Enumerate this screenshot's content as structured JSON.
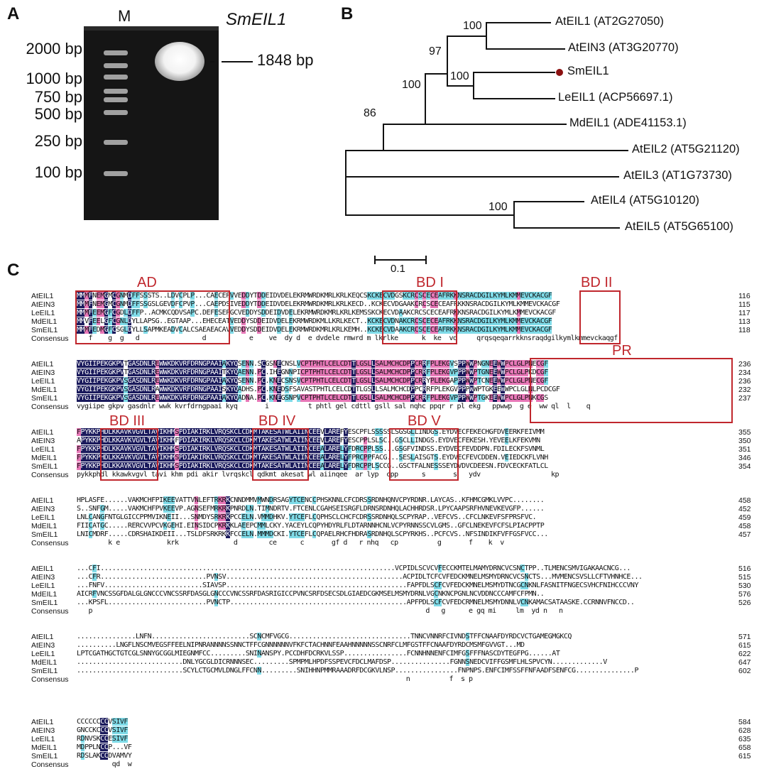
{
  "panels": {
    "a": "A",
    "b": "B",
    "c": "C"
  },
  "gel": {
    "lane_marker": "M",
    "gene": "SmEIL1",
    "band_size": "1848 bp",
    "ladder": [
      "2000 bp",
      "1000 bp",
      "750 bp",
      "500 bp",
      "250 bp",
      "100 bp"
    ]
  },
  "tree": {
    "leaves": [
      "AtEIL1 (AT2G27050)",
      "AtEIN3 (AT3G20770)",
      "SmEIL1",
      "LeEIL1 (ACP56697.1)",
      "MdEIL1 (ADE41153.1)",
      "AtEIL2 (AT5G21120)",
      "AtEIL3 (AT1G73730)",
      "AtEIL4 (AT5G10120)",
      "AtEIL5 (AT5G65100)"
    ],
    "bootstrap": [
      "100",
      "97",
      "100",
      "100",
      "86",
      "100"
    ],
    "scale": "0.1"
  },
  "alignment": {
    "names": [
      "AtEIL1",
      "AtEIN3",
      "LeEIL1",
      "MdEIL1",
      "SmEIL1",
      "Consensus"
    ],
    "domains": [
      "AD",
      "BD I",
      "BD II",
      "PR",
      "BD III",
      "BD IV",
      "BD V"
    ],
    "blocks": [
      {
        "rows": [
          "MMMFNEMGMCGNMDFFSSSTS..LDVCPLP...CAECEPVVEDDYTDDEIDVDELEKRMWRDKMRLKRLKEQCSKCKECVDGSKCRCSCECEAFRKKNSRACDGILKYMLKMMEVCKACGF",
          "MMMFNEMGMCGNMDFFSSGSLGEVDFCPVP...CAEPDSIVEDDYTDDEIDVDELEKRMWRDKMRLKRLKECD..KCKECVDGAAKCRCSCECEAFRKKNSRACDGILKYMLKMMEVCKACGF",
          "MMMFEEMGFCGDLDFFP..ACMKCQDVSAPC.DEFESEPGCVEDDYSDDEIDVDELEKRMWRDKMRLKRLKEMSSKCKECVDAAKCRCSCECEAFRKKNSRACDGILKYMLKMMEVCKACGF",
          "MMVFEELGFCGNLDYLLAPSG..EGTAAP...EHECEATVEDDYSDDEIDVDELEKRMWRDKMLLKRLKECT..KCKECVDNAKCRCSCECEAFRKKNSRACDGILKYMLKMMEVCKACGF",
          "MMMFEDMGFCSGLDYLLSAPMKEADVCALCSAEAEACAVVEDDYSDDEIDVDELEKRMWRDKMRLKRLKEMH..KCKECVDAAKCRCSCECEAFRKKNSRACDGILKYMLKMMEVCKACGF",
          "   f    g  g   d                d           e    ve  dy d  e dvdele rmwrd m lkrlke      k  ke  vd     qrqsqeqarrkknsraqdgilkymlkmmevckaqgf"
        ],
        "nums": [
          "116",
          "115",
          "117",
          "113",
          "118"
        ]
      },
      {
        "rows": [
          "VYGIIPEKGKPVTGASDNLREWWKDKVRFDRNGPAAIAKYQSENN.SCGSNECNSLVCPTPHTLCELCDTTLGSLLSALMCHCDPPCRRFPLEKGVSPPWWPNGNEEWWPCLGLPNECGF",
          "VYGIIPEKGKPVTGASDNLREWWKDKVRFDRNGPAAITKYQAENN.PC.IHEGNNPICPTPHTLCELCDTTLGSLLSALMCHCDPPCRRFPLEKGVPPPWWPTGNEEWWPCLGLPKDCGF",
          "VYGIIPEKGKPVSGASDNLREWWKDKVRFDRNGPAAIAKYQSENN.PC.KNECSNSVCPTPHTLCELCDTTLGSLLSALMCHCDPPCRRYPLEKGAPPPWWPTCNEEWWPCLGLPNECGF",
          "VYGIIPEKGKPVSGASDNLRAWWKDKVRFDRNGPAAISKYQADHS.PC.KNEDSFSAVASTPHTLCELCDTTLGSLLSALMCHCDPPCRRFPLEKGVPPPWWPTGKEEWWPCLGLNLPCDCGF",
          "VYGIIPEKGKPVSGASDNLREWWKDKVRFDRNGPAAIAKYQADNA.PC.KNEGSNPVCPTPHTLCELCDTTLGSLLSALMCHCDPPCRRFPLEKGVPPPWWPTGKEEWWPCLGLPNKCGS",
          "vygiipe gkpv gasdnlr wwk kvrfdrngpaai kyq       i          t phtl gel cdttl gsll sal nqhc ppqr r pl ekg   ppwwp  g e  ww ql  l    q"
        ],
        "nums": [
          "236",
          "234",
          "236",
          "232",
          "237"
        ]
      },
      {
        "rows": [
          "FPYKKPHDLKKAVKVGVLTAVIKHMSPDIAKIRKLVRQSKCLCDKMTAKESATWLAIINCEEVLAREFYESCPFLSSSSSLSGSGLLINDGS.EYDVECFEKECHGFDVEERKFEIVMM",
          "APYKKPHDLKKAVKVGVLTAVIKHMFPDIAKIRKLVRQSKCLCDKMTAKESATWLAIINCEEVLAREFYESCPPLSLSC..GSCLLINDGS.EYDVECFEKESH.YEVEELKFEKVMN",
          "FPYKKPHDLKKAVKVGVLTAVIKHMSPDIAKIRKLVRQSKCLCDKMTAKESATWLAIINCEEALARELYFDRCPPLSS...GSGFVINDSS.EYDVECFEVDDPN.FDILECKFSVNML",
          "FPYKKPHDLKKAVKVGVLTAVIKHMSPDIAKIRKLVRQSKCLCDKMTAKESATWLAIINCEEALARELYFPRCPPFACG...SESLAISGTS.EYDVECFEVCDDEN.VEIEDCKFLVNH",
          "FPYKKPHDLKKAVKVGVLTAVIKHMSPDIAKIRKLVRQSKCLCDKMTAKESATWLAIINCEEALARELYFDRCPPLSCCG..GSCTFALNESSSEYDVDVCDEESN.FDVCECKFATLCL",
          "pykkphdl kkawkvgvl tavi khm pdi akir lvrqskcl qdkmt akesat wl aiinqee  ar lyp  cpp      s       s   ydv                  kp"
        ],
        "nums": [
          "355",
          "350",
          "351",
          "346",
          "354"
        ]
      },
      {
        "rows": [
          "HPLASFE......VAKMCHFPIKEEVATTVNLEFTRKRKCNNDMMVMWNDRSAGYTCENCCPHSKNNLCFCDRSSRDNHQNVCPYRDNR.LAYCAS..KFHMCGMKLVVPC........",
          "S..SNFGM.....VAKMCHFPVKEEVP.AGNSEFMRKRKPNRDLN.TIMNDRTV.FTCENLCGAHSEISRGFLDRNSRDNHQLACHHRDSR.LPYCAAPSRFHVNEVKEVGFP......",
          "LNLCANGFNTGLGICCPPMVIKNEII...SNMDYSRKRKPCCELN.VMMDHKV.YTCEFLCQPHSCLCHCFCDRSSRDNHQLSCPYRAP..VEFCVS..CFCLNKEVFSFPRSFVC.",
          "FIICATGC.....RERCVVPCVKGEHI.EINSIDCPKRKKLAEEPCMMLCKY.YACEYLCQPYHDYRLFLDTARNNHCNLVCPYRNNSSCVLGMS..GFCLNEKEVFCFSLPIACPPTP",
          "LNICMDRF.....CDRSHAIKDEII...TSLDFSRKRKKFCCELN.MMMDCKI.YTCEFLCQPAELRHCFHDRASRDNHQLSCPYRKHS..PCFCVS..NFSINDIKFVFFGSFVCC...",
          "        k e            krk              d        ce      c       gf d   r nhq   cp          g       f    k  v"
        ],
        "nums": [
          "458",
          "452",
          "459",
          "458",
          "457"
        ]
      },
      {
        "rows": [
          "...CFI...........................................................................VCPIDLSCVCVFECCKMTELMAMYDRNCVCSNCTPP..TLMENCSMVIGAKAACNCG...",
          "...CFR...........................PVNSV.............................................ACPIDLTCFCVFEDCKMNELMSMYDRNCVCSNCTS...MVMENCSVSLLCFTVHNHCE...",
          "...FNFV.........................SIAVSP..............................................FAPFDLSCFCVFEDCKMNELMSMYDTNCGCNKNLFASNITFNGECSVHCFNIHCCCVNY",
          "AICRFVNCSSGFDALGLGNCCCVNCSSRFDASGLGNCCCVNCSSRFDASRIGICCPVNCSRFDSECSDLGIAEDCGKMSELMSMYDRNLVGCNKNCPGNLNCVDDNCCCAMFCFPMN..",
          "...KPSFL.........................PVNCTP.............................................APFPDLSCFCVFEDCRMNELMSMYDNNLVCNKAMACSATAASKE.CCRNNVFNCCD..",
          "   p                                                                                     d   g      e gq mi     lm  yd n   n"
        ],
        "nums": [
          "516",
          "515",
          "530",
          "576",
          "526"
        ]
      },
      {
        "rows": [
          "...............LNFN.........................SCNCMFVGCG...............................TNNCVNNRFCIVNDSTFFCNAAFDYRDCVCTGAMEGMGKCQ",
          "..........LNGFLNSCMVEGSFFEELNIPNRANNNNSSNNCTFFCGNNNNNNVFKFCTACHNNFEAAHNNNNNSSCNRFCLMFGSTFFCNAAFDYRDCMSMFGVVGT...MD",
          "LPTCGATHGCTGTCGLSNNYGCGGLMIEGNMFCC.........SNINANSPY.PCCDHFDCRKVLSSP................FCNNHNNENFCIMFGSFFFNASCDYTEGFPG......AT",
          "...........................DNLYGCGLDICRNNNSEC.........SPMPMLHPDFSSPEVCFDCLMAFDSP...............FGNNSNEDCVIFFGSMFLHLSPVCYN.............V",
          "...........................SCYLCTGCMVLDNGLFFCNN.........SNIHHNPMMRAAADRFDCGKVLNSP................FNPNPS.ENFCIMFSSFFNFAADFSENFCG...............P",
          "                                                                                    n          f  s p"
        ],
        "nums": [
          "571",
          "615",
          "622",
          "647",
          "602"
        ]
      },
      {
        "rows": [
          "CCCCCCCCVSIVF",
          "GNCCKCCCVSIVF",
          "RDNVSKCCESIVF",
          "MDPPLNCCP...VF",
          "RDSLAKCCDVAMVY",
          "         qd  w"
        ],
        "nums": [
          "584",
          "628",
          "635",
          "658",
          "615"
        ]
      }
    ]
  },
  "colors": {
    "identical": "#1a1a5c",
    "high": "#e878b8",
    "similar": "#7fdbe8",
    "domain": "#c0272d",
    "dot": "#8b1010"
  }
}
